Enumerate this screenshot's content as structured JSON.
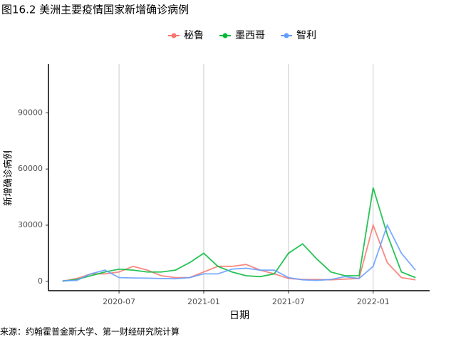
{
  "chart_data": {
    "type": "line",
    "title": "图16.2 美洲主要疫情国家新增确诊病例",
    "x_label": "日期",
    "y_label": "新增确诊病例",
    "source": "来源：约翰霍普金斯大学、第一财经研究院计算",
    "x": [
      "2020-03",
      "2020-04",
      "2020-05",
      "2020-06",
      "2020-07",
      "2020-08",
      "2020-09",
      "2020-10",
      "2020-11",
      "2020-12",
      "2021-01",
      "2021-02",
      "2021-03",
      "2021-04",
      "2021-05",
      "2021-06",
      "2021-07",
      "2021-08",
      "2021-09",
      "2021-10",
      "2021-11",
      "2021-12",
      "2022-01",
      "2022-02",
      "2022-03",
      "2022-04"
    ],
    "series": [
      {
        "name": "秘鲁",
        "color": "#F8766D",
        "values": [
          100,
          1500,
          4000,
          4000,
          5000,
          8000,
          6000,
          3000,
          2000,
          2000,
          5000,
          8000,
          8000,
          9000,
          6000,
          4000,
          1500,
          1000,
          1000,
          800,
          1200,
          1500,
          30000,
          10000,
          2000,
          800
        ]
      },
      {
        "name": "墨西哥",
        "color": "#00BA38",
        "values": [
          100,
          1000,
          3000,
          5000,
          6500,
          6000,
          5000,
          5000,
          6000,
          10000,
          15000,
          8000,
          5000,
          3000,
          2500,
          4000,
          15000,
          20000,
          12000,
          5000,
          3000,
          3000,
          50000,
          25000,
          5000,
          2000
        ]
      },
      {
        "name": "智利",
        "color": "#619CFF",
        "values": [
          300,
          500,
          4000,
          6000,
          2000,
          1800,
          1700,
          1500,
          1400,
          2000,
          4000,
          4000,
          6500,
          7000,
          6000,
          6000,
          2000,
          800,
          500,
          1000,
          2500,
          1500,
          8000,
          30000,
          15000,
          6000
        ]
      }
    ],
    "xlim": [
      "2020-02",
      "2022-05"
    ],
    "xticks": [
      "2020-07",
      "2021-01",
      "2021-07",
      "2022-01"
    ],
    "ylim": [
      -5000,
      116000
    ],
    "yticks": [
      0,
      30000,
      60000,
      90000
    ],
    "grid": "x",
    "legend": "top"
  }
}
